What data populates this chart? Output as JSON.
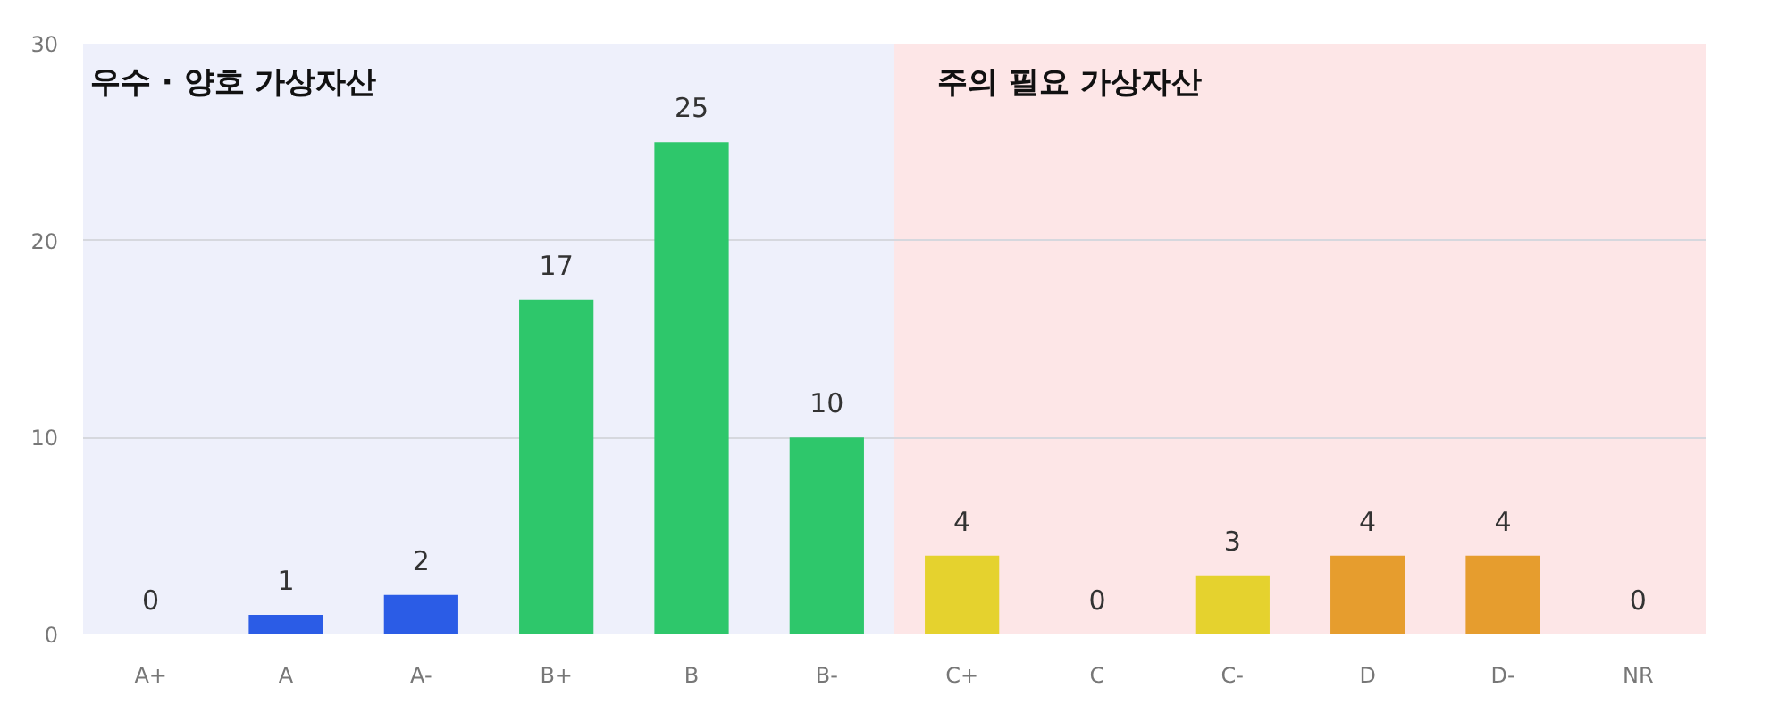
{
  "chart_data": {
    "type": "bar",
    "categories": [
      "A+",
      "A",
      "A-",
      "B+",
      "B",
      "B-",
      "C+",
      "C",
      "C-",
      "D",
      "D-",
      "NR"
    ],
    "values": [
      0,
      1,
      2,
      17,
      25,
      10,
      4,
      0,
      3,
      4,
      4,
      0
    ],
    "colors": [
      "#2b5ce6",
      "#2b5ce6",
      "#2b5ce6",
      "#2ec76b",
      "#2ec76b",
      "#2ec76b",
      "#e5d22e",
      "#e5d22e",
      "#e5d22e",
      "#e69d2e",
      "#e69d2e",
      "#e69d2e"
    ],
    "ylim": [
      0,
      30
    ],
    "yticks": [
      0,
      10,
      20,
      30
    ],
    "grid": "y",
    "data_labels": true,
    "bands": [
      {
        "axis": "x",
        "from": "A+",
        "to": "B-",
        "label": "우수 · 양호 가상자산",
        "color": "#eef0fb"
      },
      {
        "axis": "x",
        "from": "C+",
        "to": "NR",
        "label": "주의 필요 가상자산",
        "color": "#fde6e7"
      }
    ]
  }
}
